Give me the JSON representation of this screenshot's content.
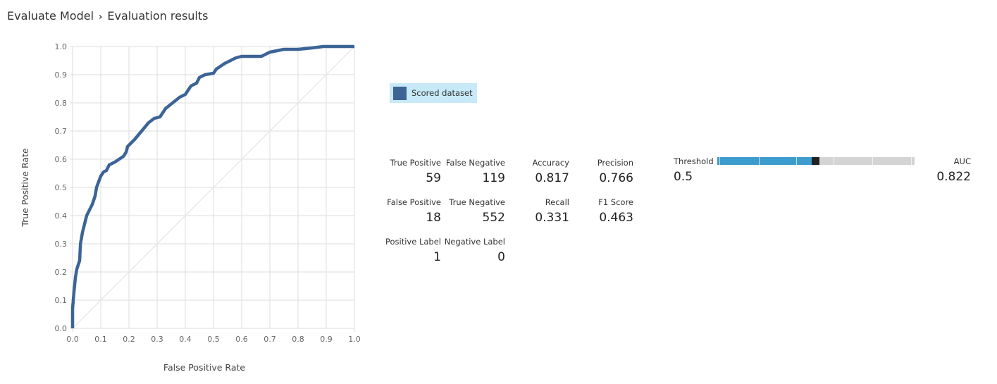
{
  "breadcrumb": {
    "parent": "Evaluate Model",
    "separator": "›",
    "current": "Evaluation results"
  },
  "legend": {
    "label": "Scored dataset",
    "color": "#3c6496"
  },
  "metrics": {
    "true_positive": {
      "label": "True Positive",
      "value": "59"
    },
    "false_negative": {
      "label": "False Negative",
      "value": "119"
    },
    "accuracy": {
      "label": "Accuracy",
      "value": "0.817"
    },
    "precision": {
      "label": "Precision",
      "value": "0.766"
    },
    "false_positive": {
      "label": "False Positive",
      "value": "18"
    },
    "true_negative": {
      "label": "True Negative",
      "value": "552"
    },
    "recall": {
      "label": "Recall",
      "value": "0.331"
    },
    "f1": {
      "label": "F1 Score",
      "value": "0.463"
    },
    "positive_label": {
      "label": "Positive Label",
      "value": "1"
    },
    "negative_label": {
      "label": "Negative Label",
      "value": "0"
    },
    "threshold": {
      "label": "Threshold",
      "value": "0.5",
      "slider_fraction": 0.5
    },
    "auc": {
      "label": "AUC",
      "value": "0.822"
    }
  },
  "chart_data": {
    "type": "line",
    "xlabel": "False Positive Rate",
    "ylabel": "True Positive Rate",
    "xlim": [
      0,
      1
    ],
    "ylim": [
      0,
      1
    ],
    "xticks": [
      "0.0",
      "0.1",
      "0.2",
      "0.3",
      "0.4",
      "0.5",
      "0.6",
      "0.7",
      "0.8",
      "0.9",
      "1.0"
    ],
    "yticks": [
      "0.0",
      "0.1",
      "0.2",
      "0.3",
      "0.4",
      "0.5",
      "0.6",
      "0.7",
      "0.8",
      "0.9",
      "1.0"
    ],
    "grid": true,
    "series": [
      {
        "name": "Scored dataset",
        "color": "#3c6496",
        "x": [
          0,
          0,
          0.005,
          0.01,
          0.015,
          0.025,
          0.028,
          0.035,
          0.05,
          0.06,
          0.07,
          0.08,
          0.085,
          0.1,
          0.11,
          0.12,
          0.13,
          0.15,
          0.18,
          0.19,
          0.195,
          0.22,
          0.27,
          0.29,
          0.31,
          0.33,
          0.38,
          0.4,
          0.42,
          0.44,
          0.45,
          0.47,
          0.5,
          0.51,
          0.54,
          0.56,
          0.58,
          0.6,
          0.67,
          0.7,
          0.75,
          0.8,
          0.85,
          0.89,
          1
        ],
        "y": [
          0,
          0.07,
          0.13,
          0.18,
          0.21,
          0.24,
          0.3,
          0.34,
          0.4,
          0.42,
          0.44,
          0.47,
          0.5,
          0.54,
          0.555,
          0.56,
          0.58,
          0.59,
          0.61,
          0.625,
          0.645,
          0.67,
          0.73,
          0.745,
          0.75,
          0.78,
          0.82,
          0.83,
          0.86,
          0.87,
          0.89,
          0.9,
          0.905,
          0.92,
          0.94,
          0.95,
          0.96,
          0.965,
          0.965,
          0.98,
          0.99,
          0.99,
          0.995,
          1,
          1
        ]
      }
    ],
    "reference_line": {
      "x": [
        0,
        1
      ],
      "y": [
        0,
        1
      ],
      "color": "#e6e6e6"
    }
  }
}
